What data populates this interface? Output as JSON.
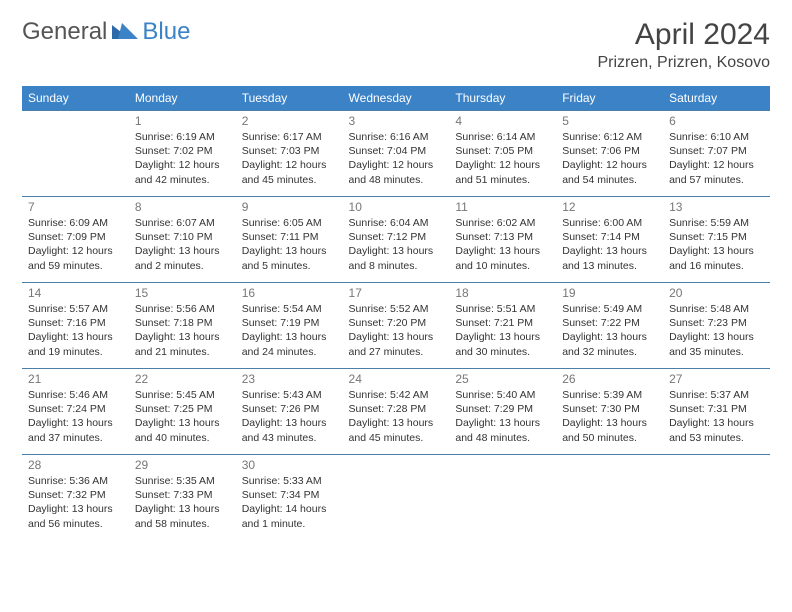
{
  "brand": {
    "part1": "General",
    "part2": "Blue"
  },
  "title": "April 2024",
  "location": "Prizren, Prizren, Kosovo",
  "colors": {
    "header_bg": "#3b82c7",
    "header_text": "#ffffff",
    "row_border": "#4a7fa8",
    "daynum": "#777777",
    "body_text": "#333333",
    "brand_gray": "#555555",
    "brand_blue": "#3b82c7"
  },
  "day_headers": [
    "Sunday",
    "Monday",
    "Tuesday",
    "Wednesday",
    "Thursday",
    "Friday",
    "Saturday"
  ],
  "weeks": [
    [
      null,
      {
        "n": "1",
        "sr": "6:19 AM",
        "ss": "7:02 PM",
        "dl": "12 hours and 42 minutes."
      },
      {
        "n": "2",
        "sr": "6:17 AM",
        "ss": "7:03 PM",
        "dl": "12 hours and 45 minutes."
      },
      {
        "n": "3",
        "sr": "6:16 AM",
        "ss": "7:04 PM",
        "dl": "12 hours and 48 minutes."
      },
      {
        "n": "4",
        "sr": "6:14 AM",
        "ss": "7:05 PM",
        "dl": "12 hours and 51 minutes."
      },
      {
        "n": "5",
        "sr": "6:12 AM",
        "ss": "7:06 PM",
        "dl": "12 hours and 54 minutes."
      },
      {
        "n": "6",
        "sr": "6:10 AM",
        "ss": "7:07 PM",
        "dl": "12 hours and 57 minutes."
      }
    ],
    [
      {
        "n": "7",
        "sr": "6:09 AM",
        "ss": "7:09 PM",
        "dl": "12 hours and 59 minutes."
      },
      {
        "n": "8",
        "sr": "6:07 AM",
        "ss": "7:10 PM",
        "dl": "13 hours and 2 minutes."
      },
      {
        "n": "9",
        "sr": "6:05 AM",
        "ss": "7:11 PM",
        "dl": "13 hours and 5 minutes."
      },
      {
        "n": "10",
        "sr": "6:04 AM",
        "ss": "7:12 PM",
        "dl": "13 hours and 8 minutes."
      },
      {
        "n": "11",
        "sr": "6:02 AM",
        "ss": "7:13 PM",
        "dl": "13 hours and 10 minutes."
      },
      {
        "n": "12",
        "sr": "6:00 AM",
        "ss": "7:14 PM",
        "dl": "13 hours and 13 minutes."
      },
      {
        "n": "13",
        "sr": "5:59 AM",
        "ss": "7:15 PM",
        "dl": "13 hours and 16 minutes."
      }
    ],
    [
      {
        "n": "14",
        "sr": "5:57 AM",
        "ss": "7:16 PM",
        "dl": "13 hours and 19 minutes."
      },
      {
        "n": "15",
        "sr": "5:56 AM",
        "ss": "7:18 PM",
        "dl": "13 hours and 21 minutes."
      },
      {
        "n": "16",
        "sr": "5:54 AM",
        "ss": "7:19 PM",
        "dl": "13 hours and 24 minutes."
      },
      {
        "n": "17",
        "sr": "5:52 AM",
        "ss": "7:20 PM",
        "dl": "13 hours and 27 minutes."
      },
      {
        "n": "18",
        "sr": "5:51 AM",
        "ss": "7:21 PM",
        "dl": "13 hours and 30 minutes."
      },
      {
        "n": "19",
        "sr": "5:49 AM",
        "ss": "7:22 PM",
        "dl": "13 hours and 32 minutes."
      },
      {
        "n": "20",
        "sr": "5:48 AM",
        "ss": "7:23 PM",
        "dl": "13 hours and 35 minutes."
      }
    ],
    [
      {
        "n": "21",
        "sr": "5:46 AM",
        "ss": "7:24 PM",
        "dl": "13 hours and 37 minutes."
      },
      {
        "n": "22",
        "sr": "5:45 AM",
        "ss": "7:25 PM",
        "dl": "13 hours and 40 minutes."
      },
      {
        "n": "23",
        "sr": "5:43 AM",
        "ss": "7:26 PM",
        "dl": "13 hours and 43 minutes."
      },
      {
        "n": "24",
        "sr": "5:42 AM",
        "ss": "7:28 PM",
        "dl": "13 hours and 45 minutes."
      },
      {
        "n": "25",
        "sr": "5:40 AM",
        "ss": "7:29 PM",
        "dl": "13 hours and 48 minutes."
      },
      {
        "n": "26",
        "sr": "5:39 AM",
        "ss": "7:30 PM",
        "dl": "13 hours and 50 minutes."
      },
      {
        "n": "27",
        "sr": "5:37 AM",
        "ss": "7:31 PM",
        "dl": "13 hours and 53 minutes."
      }
    ],
    [
      {
        "n": "28",
        "sr": "5:36 AM",
        "ss": "7:32 PM",
        "dl": "13 hours and 56 minutes."
      },
      {
        "n": "29",
        "sr": "5:35 AM",
        "ss": "7:33 PM",
        "dl": "13 hours and 58 minutes."
      },
      {
        "n": "30",
        "sr": "5:33 AM",
        "ss": "7:34 PM",
        "dl": "14 hours and 1 minute."
      },
      null,
      null,
      null,
      null
    ]
  ],
  "labels": {
    "sunrise": "Sunrise:",
    "sunset": "Sunset:",
    "daylight": "Daylight:"
  }
}
